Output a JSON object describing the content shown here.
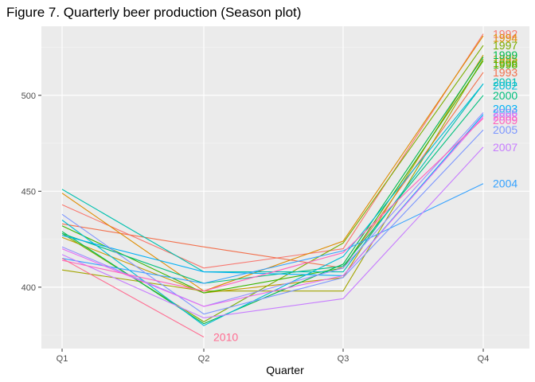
{
  "chart_data": {
    "type": "line",
    "title": "Figure 7. Quarterly beer production (Season plot)",
    "xlabel": "Quarter",
    "ylabel": "",
    "categories": [
      "Q1",
      "Q2",
      "Q3",
      "Q4"
    ],
    "yticks": [
      400,
      450,
      500
    ],
    "ylim": [
      368,
      536
    ],
    "grid": true,
    "legend": "none",
    "series": [
      {
        "name": "1992",
        "color": "#F8766D",
        "values": [
          443,
          410,
          420,
          532
        ]
      },
      {
        "name": "1993",
        "color": "#F2704D",
        "values": [
          433,
          421,
          410,
          512
        ]
      },
      {
        "name": "1994",
        "color": "#DE8C00",
        "values": [
          449,
          398,
          424,
          531
        ]
      },
      {
        "name": "1995",
        "color": "#C49A00",
        "values": [
          426,
          397,
          405,
          521
        ]
      },
      {
        "name": "1996",
        "color": "#A3A500",
        "values": [
          409,
          398,
          398,
          519
        ]
      },
      {
        "name": "1997",
        "color": "#7CAE00",
        "values": [
          428,
          382,
          423,
          526
        ]
      },
      {
        "name": "1998",
        "color": "#39B600",
        "values": [
          432,
          397,
          410,
          518
        ]
      },
      {
        "name": "1999",
        "color": "#00BB4E",
        "values": [
          429,
          381,
          412,
          520
        ]
      },
      {
        "name": "2000",
        "color": "#00BF7D",
        "values": [
          428,
          402,
          411,
          500
        ]
      },
      {
        "name": "2001",
        "color": "#00C0AF",
        "values": [
          451,
          408,
          408,
          506
        ]
      },
      {
        "name": "2002",
        "color": "#00BCD8",
        "values": [
          435,
          380,
          416,
          506
        ]
      },
      {
        "name": "2003",
        "color": "#00B0F6",
        "values": [
          427,
          408,
          406,
          490
        ]
      },
      {
        "name": "2004",
        "color": "#35A2FF",
        "values": [
          415,
          402,
          419,
          454
        ]
      },
      {
        "name": "2005",
        "color": "#7C96FF",
        "values": [
          438,
          386,
          405,
          482
        ]
      },
      {
        "name": "2006",
        "color": "#9590FF",
        "values": [
          421,
          390,
          410,
          491
        ]
      },
      {
        "name": "2007",
        "color": "#C77CFF",
        "values": [
          417,
          384,
          394,
          473
        ]
      },
      {
        "name": "2008",
        "color": "#E76BF3",
        "values": [
          420,
          390,
          406,
          489
        ]
      },
      {
        "name": "2009",
        "color": "#FF62BC",
        "values": [
          414,
          398,
          418,
          488
        ]
      },
      {
        "name": "2010",
        "color": "#FF6C91",
        "values": [
          415,
          374,
          null,
          null
        ]
      }
    ],
    "end_label_values": {
      "1992": 532,
      "1993": 512,
      "1994": 530,
      "1995": 519,
      "1996": 517,
      "1997": 526,
      "1998": 516,
      "1999": 521,
      "2000": 500,
      "2001": 507,
      "2002": 505,
      "2003": 493,
      "2004": 454,
      "2005": 482,
      "2006": 491,
      "2007": 473,
      "2008": 489,
      "2009": 487
    }
  },
  "colors": {
    "panel_background": "#EBEBEB",
    "grid_major": "#FFFFFF",
    "grid_minor": "#F5F5F5"
  }
}
